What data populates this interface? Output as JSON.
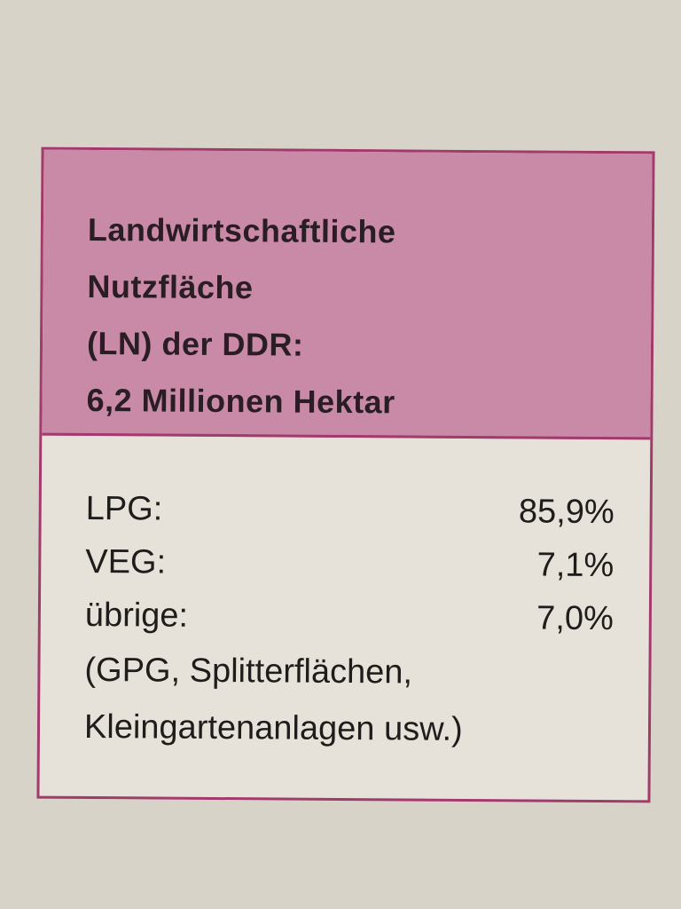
{
  "header": {
    "lines": [
      "Landwirtschaftliche",
      "Nutzfläche",
      "(LN) der DDR:",
      "6,2 Millionen Hektar"
    ]
  },
  "table": {
    "rows": [
      [
        "LPG:",
        "85,9%"
      ],
      [
        "VEG:",
        "7,1%"
      ],
      [
        "übrige:",
        "7,0%"
      ]
    ]
  },
  "note": {
    "lines": [
      "(GPG, Splitterflächen,",
      "Kleingartenanlagen usw.)"
    ]
  }
}
